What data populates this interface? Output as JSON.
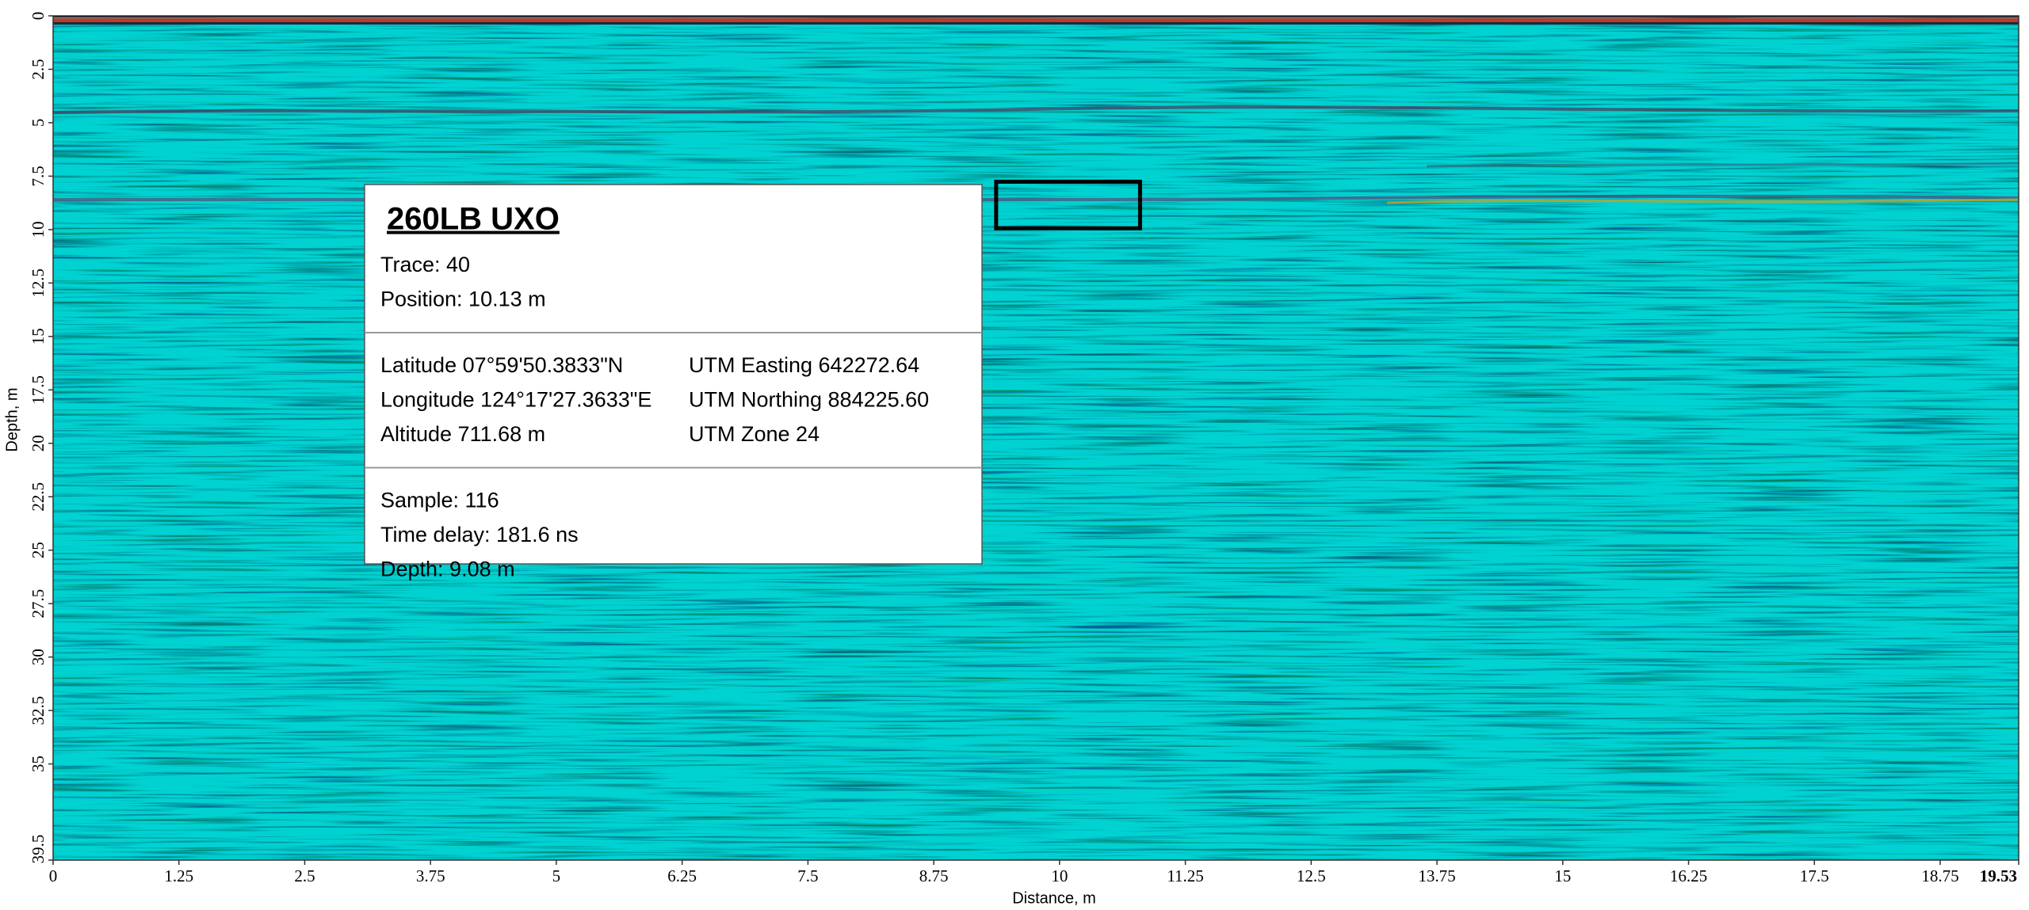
{
  "chart_data": {
    "type": "radargram",
    "x_label": "Distance, m",
    "y_label": "Depth, m",
    "xlim": [
      0,
      19.53
    ],
    "xticks": [
      0,
      1.25,
      2.5,
      3.75,
      5,
      6.25,
      7.5,
      8.75,
      10,
      11.25,
      12.5,
      13.75,
      15,
      16.25,
      17.5,
      18.75,
      19.53
    ],
    "ylim": [
      0,
      39.5
    ],
    "yticks": [
      0,
      2.5,
      5,
      7.5,
      10,
      12.5,
      15,
      17.5,
      20,
      22.5,
      25,
      27.5,
      30,
      32.5,
      35,
      39.5
    ],
    "y_inverted": true,
    "background_color": "#00d2d2",
    "highlight": {
      "x": [
        9.37,
        10.8
      ],
      "y": [
        7.76,
        9.94
      ],
      "color": "#000000"
    },
    "annotation": {
      "title": "260LB UXO",
      "title_color": "#ff0000",
      "sections": [
        {
          "left": [
            "Trace:  40",
            "Position:  10.13 m"
          ]
        },
        {
          "left": [
            "Latitude 07°59'50.3833\"N",
            "Longitude 124°17'27.3633\"E",
            "Altitude 711.68 m"
          ],
          "right": [
            "UTM Easting 642272.64",
            "UTM Northing 884225.60",
            "UTM Zone 24"
          ]
        },
        {
          "left": [
            "Sample:  116",
            "Time delay:  181.6 ns",
            "Depth:  9.08 m"
          ]
        }
      ]
    }
  }
}
